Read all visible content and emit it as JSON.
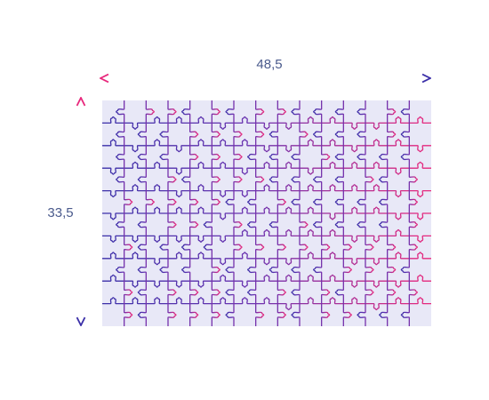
{
  "dimensions": {
    "width_label": "48,5",
    "height_label": "33,5"
  },
  "puzzle": {
    "columns": 15,
    "rows": 10
  },
  "colors": {
    "puzzle_fill": "#e8e8f7",
    "gradient_start": "#3b2fa8",
    "gradient_end": "#e8287c",
    "label_color": "#4a5a8c"
  }
}
